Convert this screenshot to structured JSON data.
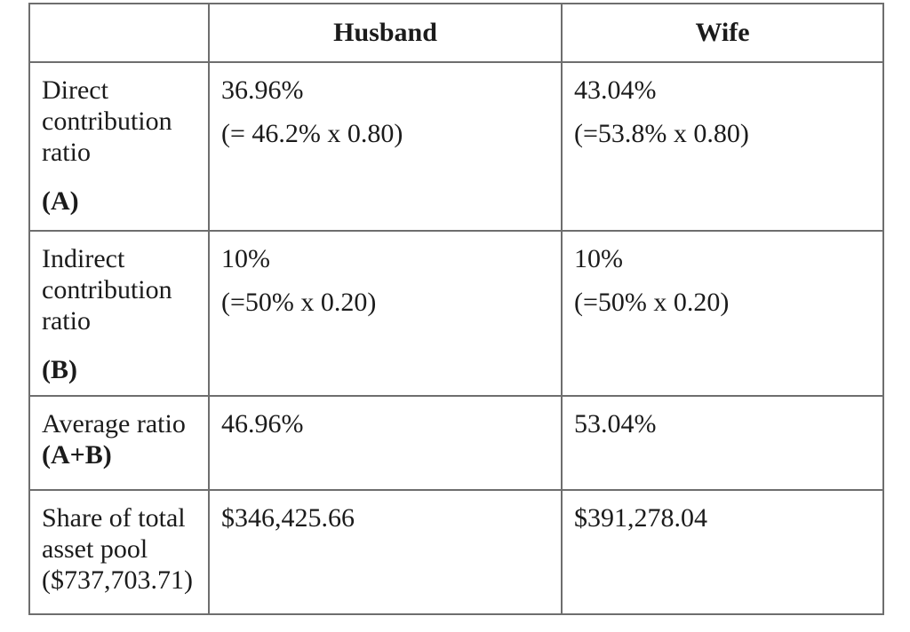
{
  "table": {
    "border_color": "#6e6e6e",
    "text_color": "#1b1b1b",
    "background_color": "#ffffff",
    "columns": [
      "",
      "Husband",
      "Wife"
    ],
    "rows": [
      {
        "label": [
          {
            "text": "Direct contribution ratio",
            "bold": false,
            "gap": false
          },
          {
            "text": "(A)",
            "bold": true,
            "gap": true
          }
        ],
        "husband": [
          {
            "text": "36.96%",
            "bold": false,
            "gap": false
          },
          {
            "text": "(= 46.2% x 0.80)",
            "bold": false,
            "gap": true
          }
        ],
        "wife": [
          {
            "text": "43.04%",
            "bold": false,
            "gap": false
          },
          {
            "text": "(=53.8% x 0.80)",
            "bold": false,
            "gap": true
          }
        ]
      },
      {
        "label": [
          {
            "text": "Indirect contribution ratio",
            "bold": false,
            "gap": false
          },
          {
            "text": "(B)",
            "bold": true,
            "gap": true
          }
        ],
        "husband": [
          {
            "text": "10%",
            "bold": false,
            "gap": false
          },
          {
            "text": "(=50% x 0.20)",
            "bold": false,
            "gap": true
          }
        ],
        "wife": [
          {
            "text": "10%",
            "bold": false,
            "gap": false
          },
          {
            "text": "(=50% x 0.20)",
            "bold": false,
            "gap": true
          }
        ]
      },
      {
        "label": [
          {
            "text": "Average ratio",
            "bold": false,
            "gap": false
          },
          {
            "text": "(A+B)",
            "bold": true,
            "gap": false
          }
        ],
        "husband": [
          {
            "text": "46.96%",
            "bold": false,
            "gap": false
          }
        ],
        "wife": [
          {
            "text": "53.04%",
            "bold": false,
            "gap": false
          }
        ]
      },
      {
        "label": [
          {
            "text": "Share of total asset pool ($737,703.71)",
            "bold": false,
            "gap": false
          }
        ],
        "husband": [
          {
            "text": "$346,425.66",
            "bold": false,
            "gap": false
          }
        ],
        "wife": [
          {
            "text": "$391,278.04",
            "bold": false,
            "gap": false
          }
        ]
      }
    ]
  }
}
